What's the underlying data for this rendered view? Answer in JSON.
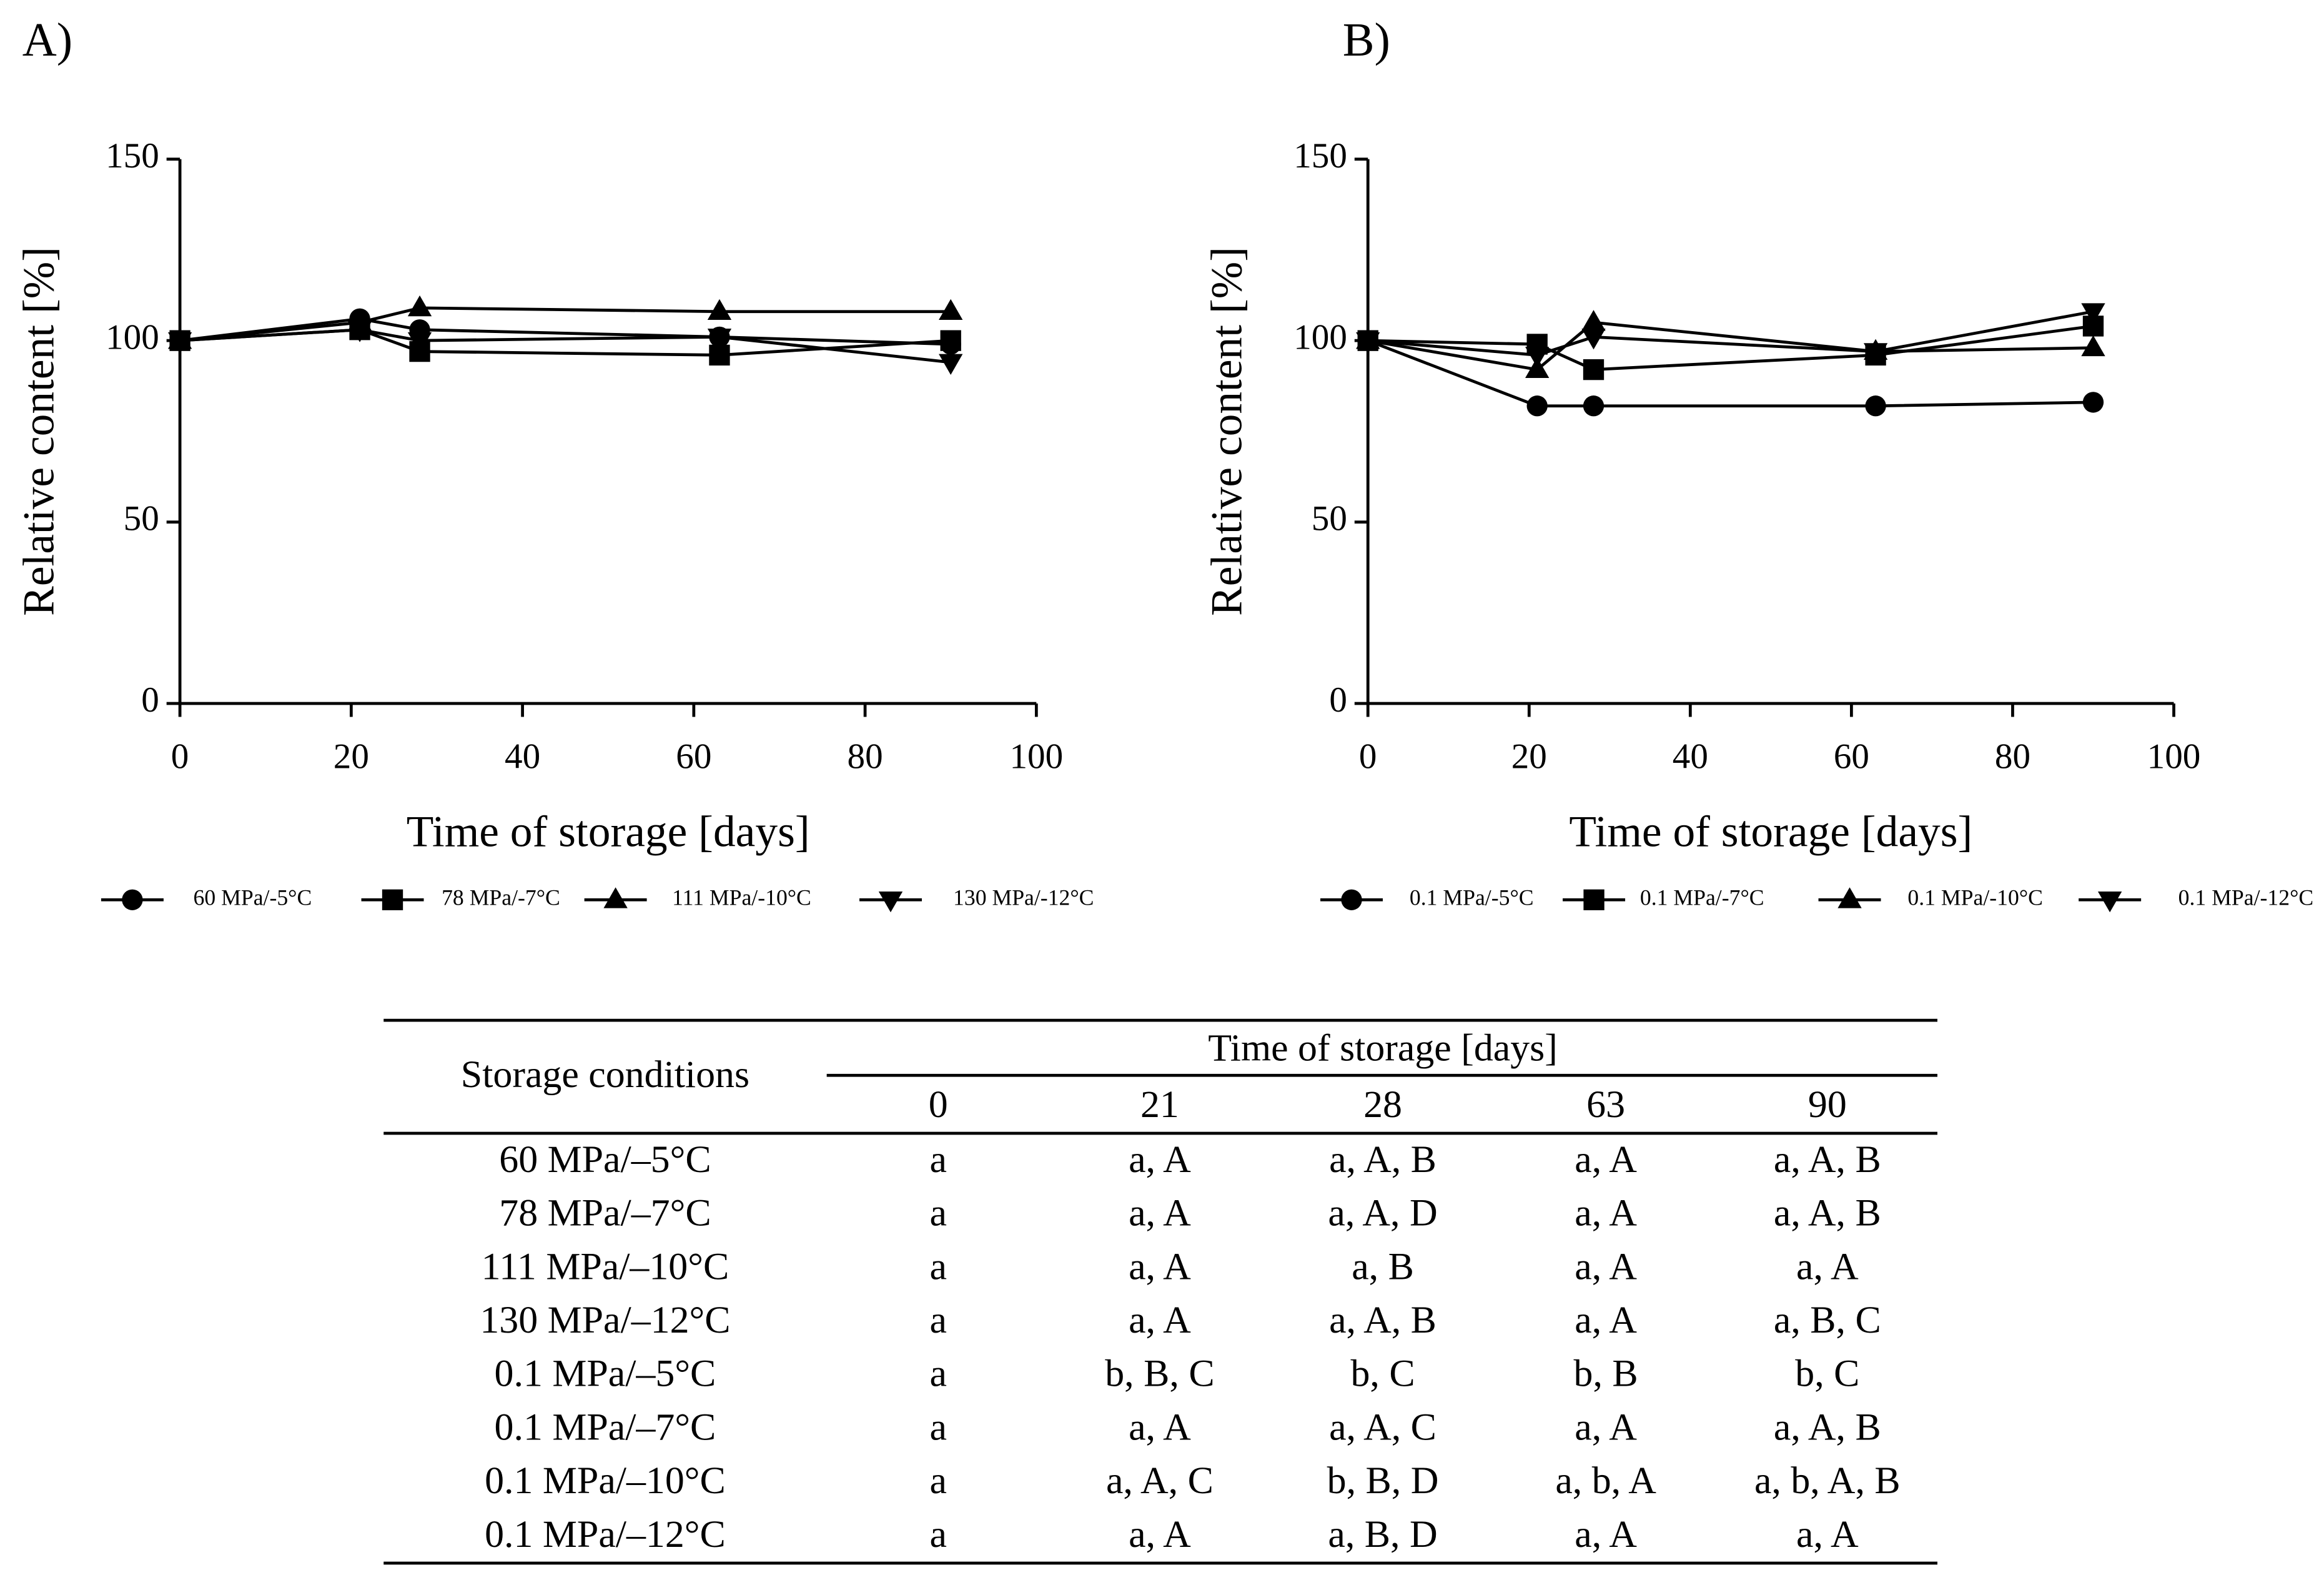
{
  "chart_data": [
    {
      "type": "line",
      "panel": "A)",
      "xlabel": "Time of storage [days]",
      "ylabel": "Relative content [%]",
      "x": [
        0,
        21,
        28,
        63,
        90
      ],
      "xlim": [
        0,
        100
      ],
      "xticks": [
        0,
        20,
        40,
        60,
        80,
        100
      ],
      "ylim": [
        0,
        150
      ],
      "yticks": [
        0,
        50,
        100,
        150
      ],
      "series": [
        {
          "name": "60 MPa/-5°C",
          "marker": "circle",
          "color": "#000000",
          "values": [
            100,
            106,
            103,
            101,
            99
          ]
        },
        {
          "name": "78 MPa/-7°C",
          "marker": "square",
          "color": "#000000",
          "values": [
            100,
            103,
            97,
            96,
            100
          ]
        },
        {
          "name": "111 MPa/-10°C",
          "marker": "triangle-up",
          "color": "#000000",
          "values": [
            100,
            105,
            109,
            108,
            108
          ]
        },
        {
          "name": "130 MPa/-12°C",
          "marker": "triangle-down",
          "color": "#000000",
          "values": [
            100,
            103,
            100,
            101,
            94
          ]
        }
      ]
    },
    {
      "type": "line",
      "panel": "B)",
      "xlabel": "Time of storage [days]",
      "ylabel": "Relative content [%]",
      "x": [
        0,
        21,
        28,
        63,
        90
      ],
      "xlim": [
        0,
        100
      ],
      "xticks": [
        0,
        20,
        40,
        60,
        80,
        100
      ],
      "ylim": [
        0,
        150
      ],
      "yticks": [
        0,
        50,
        100,
        150
      ],
      "series": [
        {
          "name": "0.1 MPa/-5°C",
          "marker": "circle",
          "color": "#000000",
          "values": [
            100,
            82,
            82,
            82,
            83
          ]
        },
        {
          "name": "0.1 MPa/-7°C",
          "marker": "square",
          "color": "#000000",
          "values": [
            100,
            99,
            92,
            96,
            104
          ]
        },
        {
          "name": "0.1 MPa/-10°C",
          "marker": "triangle-up",
          "color": "#000000",
          "values": [
            100,
            92,
            105,
            97,
            98
          ]
        },
        {
          "name": "0.1 MPa/-12°C",
          "marker": "triangle-down",
          "color": "#000000",
          "values": [
            100,
            96,
            101,
            97,
            108
          ]
        }
      ]
    }
  ],
  "table": {
    "header": {
      "row_label": "Storage conditions",
      "group": "Time of storage [days]",
      "columns": [
        "0",
        "21",
        "28",
        "63",
        "90"
      ]
    },
    "rows": [
      [
        "60 MPa/–5°C",
        "a",
        "a, A",
        "a, A, B",
        "a, A",
        "a, A, B"
      ],
      [
        "78 MPa/–7°C",
        "a",
        "a, A",
        "a, A, D",
        "a, A",
        "a, A, B"
      ],
      [
        "111 MPa/–10°C",
        "a",
        "a, A",
        "a, B",
        "a, A",
        "a, A"
      ],
      [
        "130 MPa/–12°C",
        "a",
        "a, A",
        "a, A, B",
        "a, A",
        "a, B, C"
      ],
      [
        "0.1 MPa/–5°C",
        "a",
        "b, B, C",
        "b, C",
        "b, B",
        "b, C"
      ],
      [
        "0.1 MPa/–7°C",
        "a",
        "a, A",
        "a, A, C",
        "a, A",
        "a, A, B"
      ],
      [
        "0.1 MPa/–10°C",
        "a",
        "a, A, C",
        "b, B, D",
        "a, b, A",
        "a, b, A, B"
      ],
      [
        "0.1 MPa/–12°C",
        "a",
        "a, A",
        "a, B, D",
        "a, A",
        "a, A"
      ]
    ]
  }
}
